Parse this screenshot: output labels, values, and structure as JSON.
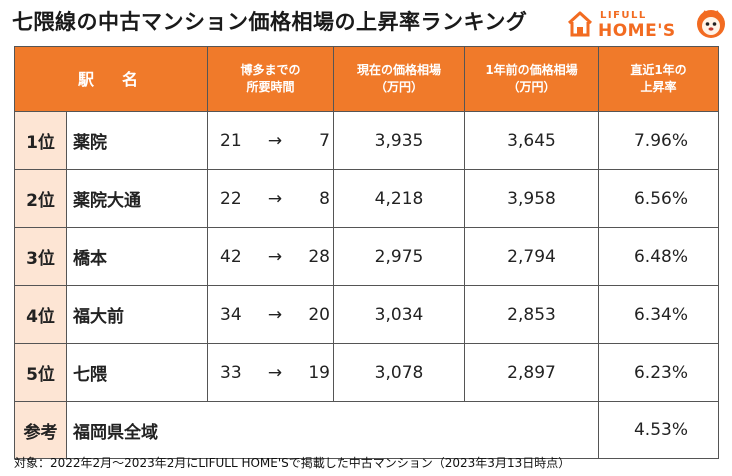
{
  "title": "七隈線の中古マンション価格相場の上昇率ランキング",
  "logo": {
    "top": "LIFULL",
    "bottom": "HOME'S",
    "accent": "#f26b21"
  },
  "headers": {
    "station": "駅　名",
    "time_line1": "博多までの",
    "time_line2": "所要時間",
    "current_line1": "現在の価格相場",
    "current_line2": "（万円）",
    "prev_line1": "1年前の価格相場",
    "prev_line2": "（万円）",
    "rate_line1": "直近1年の",
    "rate_line2": "上昇率"
  },
  "rows": [
    {
      "rank": "1位",
      "station": "薬院",
      "time_from": "21",
      "arrow": "→",
      "time_to": "7",
      "current": "3,935",
      "previous": "3,645",
      "rate": "7.96%"
    },
    {
      "rank": "2位",
      "station": "薬院大通",
      "time_from": "22",
      "arrow": "→",
      "time_to": "8",
      "current": "4,218",
      "previous": "3,958",
      "rate": "6.56%"
    },
    {
      "rank": "3位",
      "station": "橋本",
      "time_from": "42",
      "arrow": "→",
      "time_to": "28",
      "current": "2,975",
      "previous": "2,794",
      "rate": "6.48%"
    },
    {
      "rank": "4位",
      "station": "福大前",
      "time_from": "34",
      "arrow": "→",
      "time_to": "20",
      "current": "3,034",
      "previous": "2,853",
      "rate": "6.34%"
    },
    {
      "rank": "5位",
      "station": "七隈",
      "time_from": "33",
      "arrow": "→",
      "time_to": "19",
      "current": "3,078",
      "previous": "2,897",
      "rate": "6.23%"
    }
  ],
  "reference": {
    "label": "参考",
    "area": "福岡県全域",
    "rate": "4.53%"
  },
  "footnote": "対象：2022年2月～2023年2月にLIFULL HOME'Sで掲載した中古マンション（2023年3月13日時点）",
  "colors": {
    "header_bg": "#f07a2a",
    "rank_bg": "#fde5d4"
  }
}
